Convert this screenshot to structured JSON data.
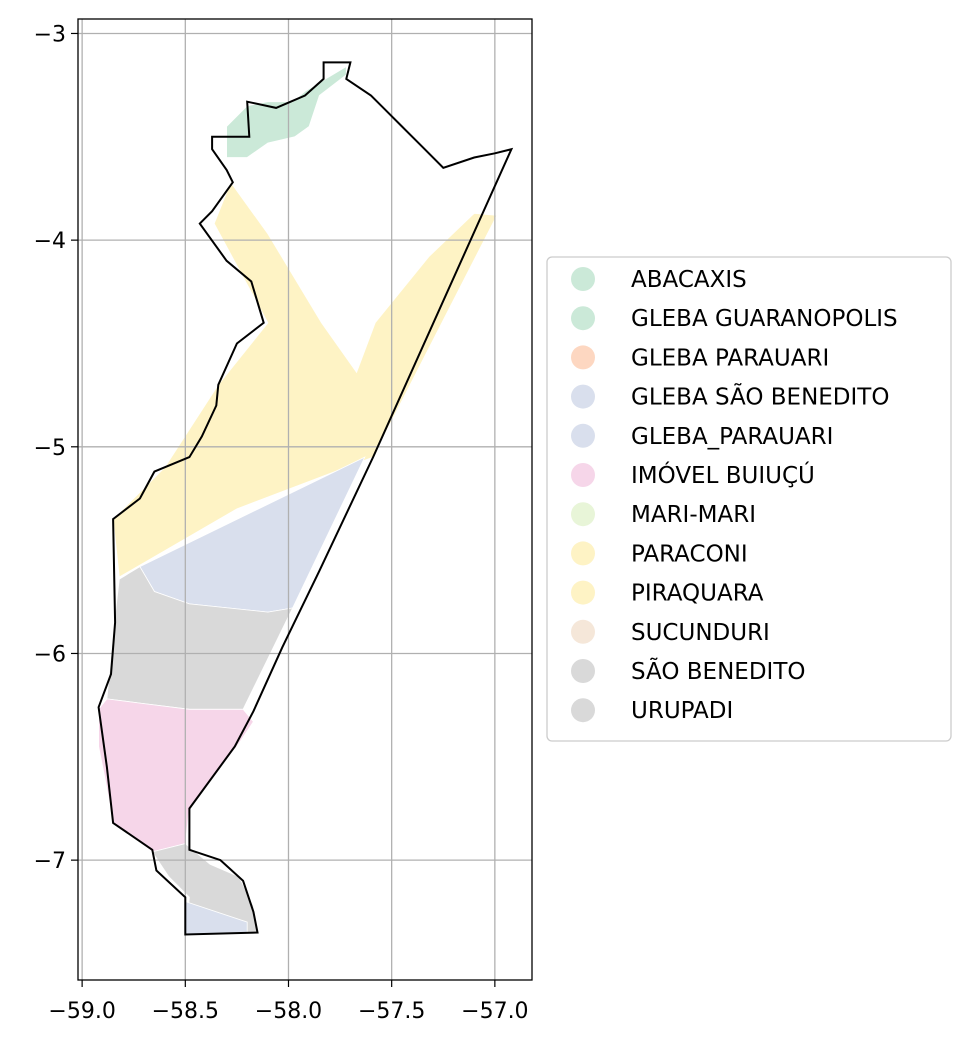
{
  "chart_data": {
    "type": "map",
    "xlim": [
      -59.02,
      -56.82
    ],
    "ylim": [
      -7.58,
      -2.93
    ],
    "x_ticks": [
      {
        "value": -59.0,
        "label": "−59.0"
      },
      {
        "value": -58.5,
        "label": "−58.5"
      },
      {
        "value": -58.0,
        "label": "−58.0"
      },
      {
        "value": -57.5,
        "label": "−57.5"
      },
      {
        "value": -57.0,
        "label": "−57.0"
      }
    ],
    "y_ticks": [
      {
        "value": -3,
        "label": "−3"
      },
      {
        "value": -4,
        "label": "−4"
      },
      {
        "value": -5,
        "label": "−5"
      },
      {
        "value": -6,
        "label": "−6"
      },
      {
        "value": -7,
        "label": "−7"
      }
    ],
    "grid": true,
    "legend_position": "right",
    "categories": [
      {
        "name": "ABACAXIS",
        "color": "#cbe9d8"
      },
      {
        "name": "GLEBA GUARANOPOLIS",
        "color": "#cbe9d8"
      },
      {
        "name": "GLEBA PARAUARI",
        "color": "#fdd7c1"
      },
      {
        "name": "GLEBA SÃO BENEDITO",
        "color": "#d9dfed"
      },
      {
        "name": "GLEBA_PARAUARI",
        "color": "#d9dfed"
      },
      {
        "name": "IMÓVEL BUIUÇÚ",
        "color": "#f6d6e9"
      },
      {
        "name": "MARI-MARI",
        "color": "#e8f5d8"
      },
      {
        "name": "PARACONI",
        "color": "#fef3c5"
      },
      {
        "name": "PIRAQUARA",
        "color": "#fef3c5"
      },
      {
        "name": "SUCUNDURI",
        "color": "#f5e7d9"
      },
      {
        "name": "SÃO BENEDITO",
        "color": "#d9d9d9"
      },
      {
        "name": "URUPADI",
        "color": "#d9d9d9"
      }
    ],
    "regions": [
      {
        "category": "GLEBA GUARANOPOLIS",
        "coords": [
          [
            -58.3,
            -3.45
          ],
          [
            -58.2,
            -3.35
          ],
          [
            -58.1,
            -3.33
          ],
          [
            -57.98,
            -3.33
          ],
          [
            -57.92,
            -3.28
          ],
          [
            -57.82,
            -3.22
          ],
          [
            -57.72,
            -3.16
          ],
          [
            -57.72,
            -3.2
          ],
          [
            -57.85,
            -3.3
          ],
          [
            -57.9,
            -3.45
          ],
          [
            -57.97,
            -3.5
          ],
          [
            -58.1,
            -3.53
          ],
          [
            -58.2,
            -3.6
          ],
          [
            -58.3,
            -3.6
          ]
        ]
      },
      {
        "category": "PARACONI",
        "coords": [
          [
            -58.28,
            -3.72
          ],
          [
            -58.1,
            -3.97
          ],
          [
            -57.84,
            -4.4
          ],
          [
            -57.67,
            -4.64
          ],
          [
            -57.58,
            -4.4
          ],
          [
            -57.32,
            -4.08
          ],
          [
            -57.1,
            -3.87
          ],
          [
            -56.99,
            -3.88
          ],
          [
            -57.59,
            -5.05
          ],
          [
            -58.25,
            -5.3
          ],
          [
            -58.82,
            -5.63
          ],
          [
            -58.85,
            -5.35
          ],
          [
            -58.6,
            -5.1
          ],
          [
            -58.34,
            -4.7
          ],
          [
            -58.1,
            -4.4
          ],
          [
            -58.36,
            -3.92
          ]
        ]
      },
      {
        "category": "GLEBA SÃO BENEDITO",
        "coords": [
          [
            -58.72,
            -5.58
          ],
          [
            -57.63,
            -5.05
          ],
          [
            -57.98,
            -5.78
          ],
          [
            -58.1,
            -5.8
          ],
          [
            -58.48,
            -5.76
          ],
          [
            -58.65,
            -5.7
          ]
        ]
      },
      {
        "category": "SÃO BENEDITO",
        "coords": [
          [
            -58.82,
            -5.64
          ],
          [
            -58.72,
            -5.58
          ],
          [
            -58.65,
            -5.7
          ],
          [
            -58.48,
            -5.76
          ],
          [
            -58.1,
            -5.8
          ],
          [
            -57.98,
            -5.78
          ],
          [
            -58.22,
            -6.27
          ],
          [
            -58.48,
            -6.27
          ],
          [
            -58.72,
            -6.24
          ],
          [
            -58.88,
            -6.22
          ],
          [
            -58.85,
            -5.9
          ]
        ]
      },
      {
        "category": "IMÓVEL BUIUÇÚ",
        "coords": [
          [
            -58.92,
            -6.27
          ],
          [
            -58.88,
            -6.22
          ],
          [
            -58.72,
            -6.24
          ],
          [
            -58.48,
            -6.27
          ],
          [
            -58.22,
            -6.27
          ],
          [
            -58.17,
            -6.33
          ],
          [
            -58.25,
            -6.45
          ],
          [
            -58.48,
            -6.75
          ],
          [
            -58.5,
            -6.92
          ],
          [
            -58.66,
            -6.96
          ],
          [
            -58.85,
            -6.82
          ],
          [
            -58.89,
            -6.6
          ],
          [
            -58.92,
            -6.45
          ]
        ]
      },
      {
        "category": "URUPADI",
        "coords": [
          [
            -58.66,
            -6.96
          ],
          [
            -58.5,
            -6.92
          ],
          [
            -58.38,
            -7.02
          ],
          [
            -58.24,
            -7.08
          ],
          [
            -58.17,
            -7.22
          ],
          [
            -58.15,
            -7.35
          ],
          [
            -58.5,
            -7.36
          ],
          [
            -58.48,
            -7.18
          ],
          [
            -58.58,
            -7.08
          ]
        ]
      },
      {
        "category": "GLEBA SÃO BENEDITO",
        "coords": [
          [
            -58.5,
            -7.2
          ],
          [
            -58.2,
            -7.3
          ],
          [
            -58.2,
            -7.35
          ],
          [
            -58.5,
            -7.36
          ]
        ]
      }
    ],
    "boundary": [
      [
        -58.37,
        -3.5
      ],
      [
        -58.19,
        -3.5
      ],
      [
        -58.2,
        -3.33
      ],
      [
        -58.06,
        -3.36
      ],
      [
        -57.92,
        -3.3
      ],
      [
        -57.83,
        -3.22
      ],
      [
        -57.83,
        -3.14
      ],
      [
        -57.7,
        -3.14
      ],
      [
        -57.72,
        -3.22
      ],
      [
        -57.6,
        -3.3
      ],
      [
        -57.45,
        -3.45
      ],
      [
        -57.35,
        -3.55
      ],
      [
        -57.25,
        -3.65
      ],
      [
        -57.1,
        -3.6
      ],
      [
        -57.0,
        -3.58
      ],
      [
        -56.92,
        -3.56
      ],
      [
        -57.59,
        -5.05
      ],
      [
        -57.85,
        -5.6
      ],
      [
        -58.03,
        -5.97
      ],
      [
        -58.17,
        -6.28
      ],
      [
        -58.26,
        -6.45
      ],
      [
        -58.48,
        -6.75
      ],
      [
        -58.48,
        -6.95
      ],
      [
        -58.33,
        -7.0
      ],
      [
        -58.22,
        -7.1
      ],
      [
        -58.17,
        -7.25
      ],
      [
        -58.15,
        -7.35
      ],
      [
        -58.5,
        -7.36
      ],
      [
        -58.5,
        -7.18
      ],
      [
        -58.64,
        -7.05
      ],
      [
        -58.66,
        -6.95
      ],
      [
        -58.85,
        -6.82
      ],
      [
        -58.88,
        -6.55
      ],
      [
        -58.92,
        -6.26
      ],
      [
        -58.86,
        -6.1
      ],
      [
        -58.84,
        -5.85
      ],
      [
        -58.85,
        -5.35
      ],
      [
        -58.72,
        -5.25
      ],
      [
        -58.65,
        -5.12
      ],
      [
        -58.48,
        -5.05
      ],
      [
        -58.42,
        -4.95
      ],
      [
        -58.35,
        -4.8
      ],
      [
        -58.34,
        -4.7
      ],
      [
        -58.25,
        -4.5
      ],
      [
        -58.12,
        -4.4
      ],
      [
        -58.18,
        -4.2
      ],
      [
        -58.3,
        -4.1
      ],
      [
        -58.43,
        -3.92
      ],
      [
        -58.37,
        -3.86
      ],
      [
        -58.27,
        -3.72
      ],
      [
        -58.3,
        -3.66
      ],
      [
        -58.37,
        -3.56
      ]
    ]
  }
}
